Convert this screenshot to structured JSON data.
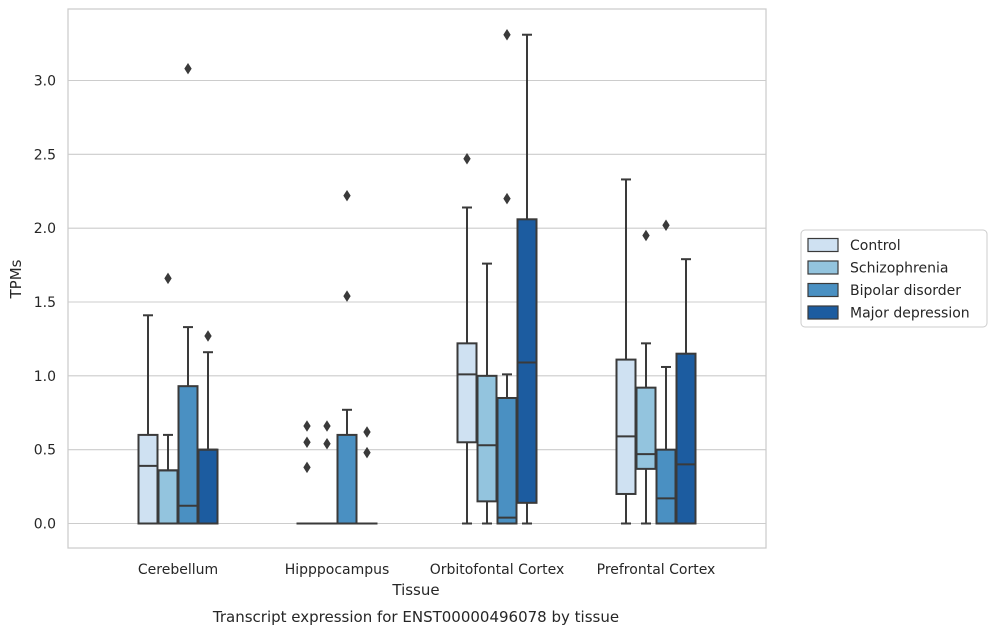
{
  "chart_data": {
    "type": "box",
    "title": "",
    "caption": "Transcript expression for ENST00000496078 by tissue",
    "xlabel": "Tissue",
    "ylabel": "TPMs",
    "ylim": [
      -0.16,
      3.47
    ],
    "yticks": [
      "0.0",
      "0.5",
      "1.0",
      "1.5",
      "2.0",
      "2.5",
      "3.0"
    ],
    "grid": true,
    "legend_position": "right",
    "categories": [
      "Cerebellum",
      "Hipppocampus",
      "Orbitofontal Cortex",
      "Prefrontal Cortex"
    ],
    "series": [
      {
        "name": "Control",
        "color": "#cfe1f2",
        "boxes": [
          {
            "min": 0,
            "q1": 0,
            "median": 0.39,
            "q3": 0.6,
            "max": 1.41,
            "outliers": []
          },
          {
            "min": 0,
            "q1": 0,
            "median": 0,
            "q3": 0,
            "max": 0,
            "outliers": [
              0.38,
              0.55,
              0.66
            ]
          },
          {
            "min": 0,
            "q1": 0.55,
            "median": 1.01,
            "q3": 1.22,
            "max": 2.14,
            "outliers": [
              2.47
            ]
          },
          {
            "min": 0,
            "q1": 0.2,
            "median": 0.59,
            "q3": 1.11,
            "max": 2.33,
            "outliers": []
          }
        ]
      },
      {
        "name": "Schizophrenia",
        "color": "#93c4de",
        "boxes": [
          {
            "min": 0,
            "q1": 0,
            "median": 0.36,
            "q3": 0.36,
            "max": 0.6,
            "outliers": [
              1.66
            ]
          },
          {
            "min": 0,
            "q1": 0,
            "median": 0,
            "q3": 0,
            "max": 0,
            "outliers": [
              0.54,
              0.66
            ]
          },
          {
            "min": 0,
            "q1": 0.15,
            "median": 0.53,
            "q3": 1.0,
            "max": 1.76,
            "outliers": []
          },
          {
            "min": 0,
            "q1": 0.37,
            "median": 0.47,
            "q3": 0.92,
            "max": 1.22,
            "outliers": [
              1.95
            ]
          }
        ]
      },
      {
        "name": "Bipolar disorder",
        "color": "#4a90c2",
        "boxes": [
          {
            "min": 0,
            "q1": 0,
            "median": 0.12,
            "q3": 0.93,
            "max": 1.33,
            "outliers": [
              3.08
            ]
          },
          {
            "min": 0,
            "q1": 0,
            "median": 0,
            "q3": 0.6,
            "max": 0.77,
            "outliers": [
              1.54,
              2.22
            ]
          },
          {
            "min": 0,
            "q1": 0,
            "median": 0.04,
            "q3": 0.85,
            "max": 1.01,
            "outliers": [
              2.2,
              3.31
            ]
          },
          {
            "min": 0,
            "q1": 0,
            "median": 0.17,
            "q3": 0.5,
            "max": 1.06,
            "outliers": [
              2.02
            ]
          }
        ]
      },
      {
        "name": "Major depression",
        "color": "#1c5ca0",
        "boxes": [
          {
            "min": 0,
            "q1": 0,
            "median": 0.5,
            "q3": 0.5,
            "max": 1.16,
            "outliers": [
              1.27
            ]
          },
          {
            "min": 0,
            "q1": 0,
            "median": 0,
            "q3": 0,
            "max": 0,
            "outliers": [
              0.48,
              0.62
            ]
          },
          {
            "min": 0,
            "q1": 0.14,
            "median": 1.09,
            "q3": 2.06,
            "max": 3.31,
            "outliers": []
          },
          {
            "min": 0,
            "q1": 0,
            "median": 0.4,
            "q3": 1.15,
            "max": 1.79,
            "outliers": []
          }
        ]
      }
    ]
  }
}
